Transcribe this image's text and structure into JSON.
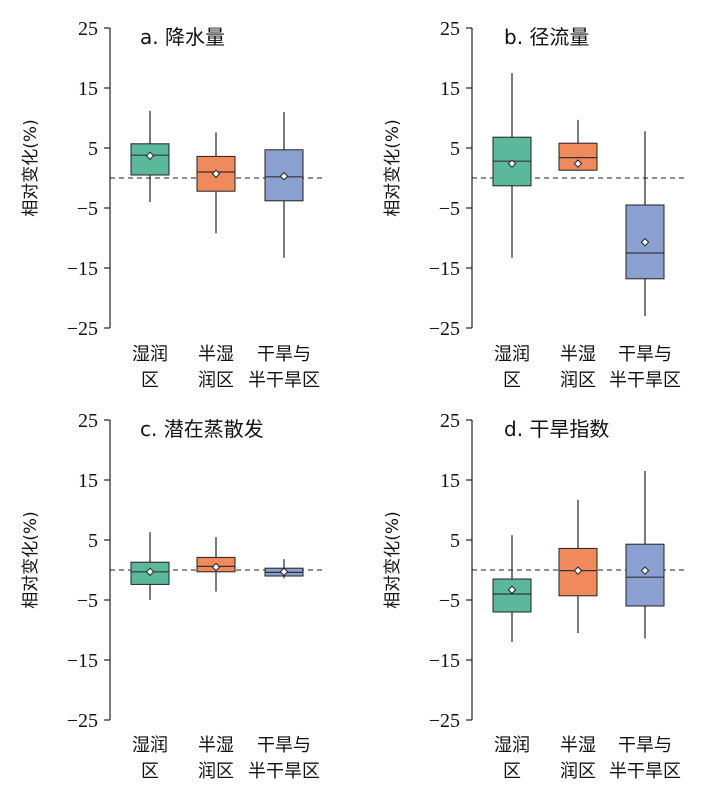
{
  "chart_data": [
    {
      "type": "box",
      "title": "a. 降水量",
      "ylabel": "相对变化(%)",
      "ylim": [
        -25,
        25
      ],
      "yticks": [
        "25",
        "15",
        "5",
        "−5",
        "−15",
        "−25"
      ],
      "ytick_values": [
        25,
        15,
        5,
        -5,
        -15,
        -25
      ],
      "reference_line": 0,
      "categories": [
        [
          "湿润",
          "区"
        ],
        [
          "半湿",
          "润区"
        ],
        [
          "干旱与",
          "半干旱区"
        ]
      ],
      "boxes": [
        {
          "color": "#5bb89a",
          "whisker_low": -4,
          "q1": 0.5,
          "median": 3.8,
          "q3": 5.7,
          "whisker_high": 11.2,
          "mean": 3.7
        },
        {
          "color": "#f08a5d",
          "whisker_low": -9.2,
          "q1": -2.2,
          "median": 1.0,
          "q3": 3.6,
          "whisker_high": 7.6,
          "mean": 0.7
        },
        {
          "color": "#8aa0d0",
          "whisker_low": -13.3,
          "q1": -3.8,
          "median": 0.2,
          "q3": 4.7,
          "whisker_high": 11.0,
          "mean": 0.3
        }
      ]
    },
    {
      "type": "box",
      "title": "b. 径流量",
      "ylabel": "相对变化(%)",
      "ylim": [
        -25,
        25
      ],
      "yticks": [
        "25",
        "15",
        "5",
        "−5",
        "−15",
        "−25"
      ],
      "ytick_values": [
        25,
        15,
        5,
        -5,
        -15,
        -25
      ],
      "reference_line": 0,
      "categories": [
        [
          "湿润",
          "区"
        ],
        [
          "半湿",
          "润区"
        ],
        [
          "干旱与",
          "半干旱区"
        ]
      ],
      "boxes": [
        {
          "color": "#5bb89a",
          "whisker_low": -13.3,
          "q1": -1.3,
          "median": 2.8,
          "q3": 6.8,
          "whisker_high": 17.5,
          "mean": 2.4
        },
        {
          "color": "#f08a5d",
          "whisker_low": 1.2,
          "q1": 1.3,
          "median": 3.4,
          "q3": 5.8,
          "whisker_high": 9.7,
          "mean": 2.4
        },
        {
          "color": "#8aa0d0",
          "whisker_low": -23.0,
          "q1": -16.8,
          "median": -12.5,
          "q3": -4.5,
          "whisker_high": 7.8,
          "mean": -10.7
        }
      ]
    },
    {
      "type": "box",
      "title": "c. 潜在蒸散发",
      "ylabel": "相对变化(%)",
      "ylim": [
        -25,
        25
      ],
      "yticks": [
        "25",
        "15",
        "5",
        "−5",
        "−15",
        "−25"
      ],
      "ytick_values": [
        25,
        15,
        5,
        -5,
        -15,
        -25
      ],
      "reference_line": 0,
      "categories": [
        [
          "湿润",
          "区"
        ],
        [
          "半湿",
          "润区"
        ],
        [
          "干旱与",
          "半干旱区"
        ]
      ],
      "boxes": [
        {
          "color": "#5bb89a",
          "whisker_low": -5.0,
          "q1": -2.4,
          "median": -0.3,
          "q3": 1.3,
          "whisker_high": 6.3,
          "mean": -0.3
        },
        {
          "color": "#f08a5d",
          "whisker_low": -3.6,
          "q1": -0.3,
          "median": 0.6,
          "q3": 2.1,
          "whisker_high": 5.5,
          "mean": 0.5
        },
        {
          "color": "#8aa0d0",
          "whisker_low": -1.4,
          "q1": -1.0,
          "median": -0.4,
          "q3": 0.3,
          "whisker_high": 1.8,
          "mean": -0.3
        }
      ]
    },
    {
      "type": "box",
      "title": "d. 干旱指数",
      "ylabel": "相对变化(%)",
      "ylim": [
        -25,
        25
      ],
      "yticks": [
        "25",
        "15",
        "5",
        "−5",
        "−15",
        "−25"
      ],
      "ytick_values": [
        25,
        15,
        5,
        -5,
        -15,
        -25
      ],
      "reference_line": 0,
      "categories": [
        [
          "湿润",
          "区"
        ],
        [
          "半湿",
          "润区"
        ],
        [
          "干旱与",
          "半干旱区"
        ]
      ],
      "boxes": [
        {
          "color": "#5bb89a",
          "whisker_low": -12.0,
          "q1": -7.0,
          "median": -4.0,
          "q3": -1.5,
          "whisker_high": 5.8,
          "mean": -3.3
        },
        {
          "color": "#f08a5d",
          "whisker_low": -10.5,
          "q1": -4.3,
          "median": -0.1,
          "q3": 3.6,
          "whisker_high": 11.7,
          "mean": -0.1
        },
        {
          "color": "#8aa0d0",
          "whisker_low": -11.4,
          "q1": -6.0,
          "median": -1.2,
          "q3": 4.3,
          "whisker_high": 16.5,
          "mean": -0.1
        }
      ]
    }
  ]
}
